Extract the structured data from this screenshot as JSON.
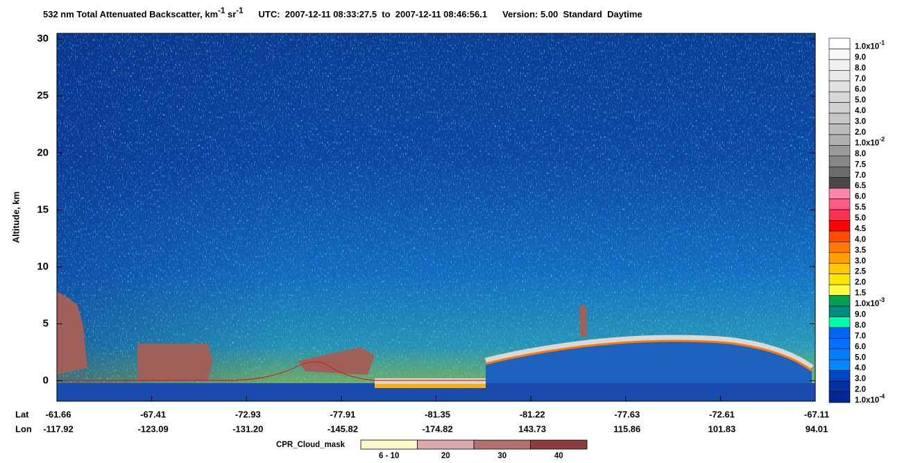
{
  "chart_data": {
    "type": "heatmap",
    "title": {
      "text1": "532 nm Total Attenuated Backscatter, km",
      "exp1": "-1",
      "text2": " sr",
      "exp2": "-1",
      "utc": "UTC:  2007-12-11 08:33:27.5  to  2007-12-11 08:46:56.1",
      "version": "Version: 5.00  Standard  Daytime"
    },
    "ylabel": "Altitude, km",
    "ylim": [
      -1.8,
      30.5
    ],
    "yticks": [
      0,
      5,
      10,
      15,
      20,
      25,
      30
    ],
    "x_rows": [
      {
        "name": "Lat",
        "labels": [
          "-61.66",
          "-67.41",
          "-72.93",
          "-77.91",
          "-81.35",
          "-81.22",
          "-77.63",
          "-72.61",
          "-67.11"
        ]
      },
      {
        "name": "Lon",
        "labels": [
          "-117.92",
          "-123.09",
          "-131.20",
          "-145.82",
          "-174.82",
          "143.73",
          "115.86",
          "101.83",
          "94.01"
        ]
      }
    ],
    "colorbar": {
      "labels": [
        {
          "text": "1.0x10",
          "exp": "-1"
        },
        "9.0",
        "8.0",
        "7.0",
        "6.0",
        "5.0",
        "4.0",
        "3.0",
        "2.0",
        {
          "text": "1.0x10",
          "exp": "-2"
        },
        "8.0",
        "7.5",
        "7.0",
        "6.5",
        "6.0",
        "5.5",
        "5.0",
        "4.5",
        "4.0",
        "3.5",
        "3.0",
        "2.5",
        "2.0",
        "1.5",
        {
          "text": "1.0x10",
          "exp": "-3"
        },
        "9.0",
        "8.0",
        "7.0",
        "6.0",
        "5.0",
        "4.0",
        "3.0",
        "2.0",
        {
          "text": "1.0x10",
          "exp": "-4"
        }
      ],
      "colors": [
        "#ffffff",
        "#f8f8f8",
        "#f0f0f0",
        "#e8e8e8",
        "#e0e0e0",
        "#d8d8d8",
        "#d0d0d0",
        "#c6c6c6",
        "#bcbcbc",
        "#b0b0b0",
        "#9a9a9a",
        "#868686",
        "#6c6c6c",
        "#484848",
        "#ff86aa",
        "#ff5a82",
        "#ff3050",
        "#ff0000",
        "#ff4c00",
        "#ff7800",
        "#ffa000",
        "#ffc800",
        "#ffe800",
        "#ffff40",
        "#00a050",
        "#008c80",
        "#00ffaa",
        "#0064ff",
        "#0070ff",
        "#007cff",
        "#0088ff",
        "#0046c0",
        "#0032a0",
        "#002896"
      ]
    },
    "cpr_legend": {
      "title": "CPR_Cloud_mask",
      "labels": [
        "6 - 10",
        "20",
        "30",
        "40"
      ],
      "colors": [
        "#fff8c8",
        "#dcaaaa",
        "#b4706e",
        "#8c3c3c"
      ]
    }
  }
}
